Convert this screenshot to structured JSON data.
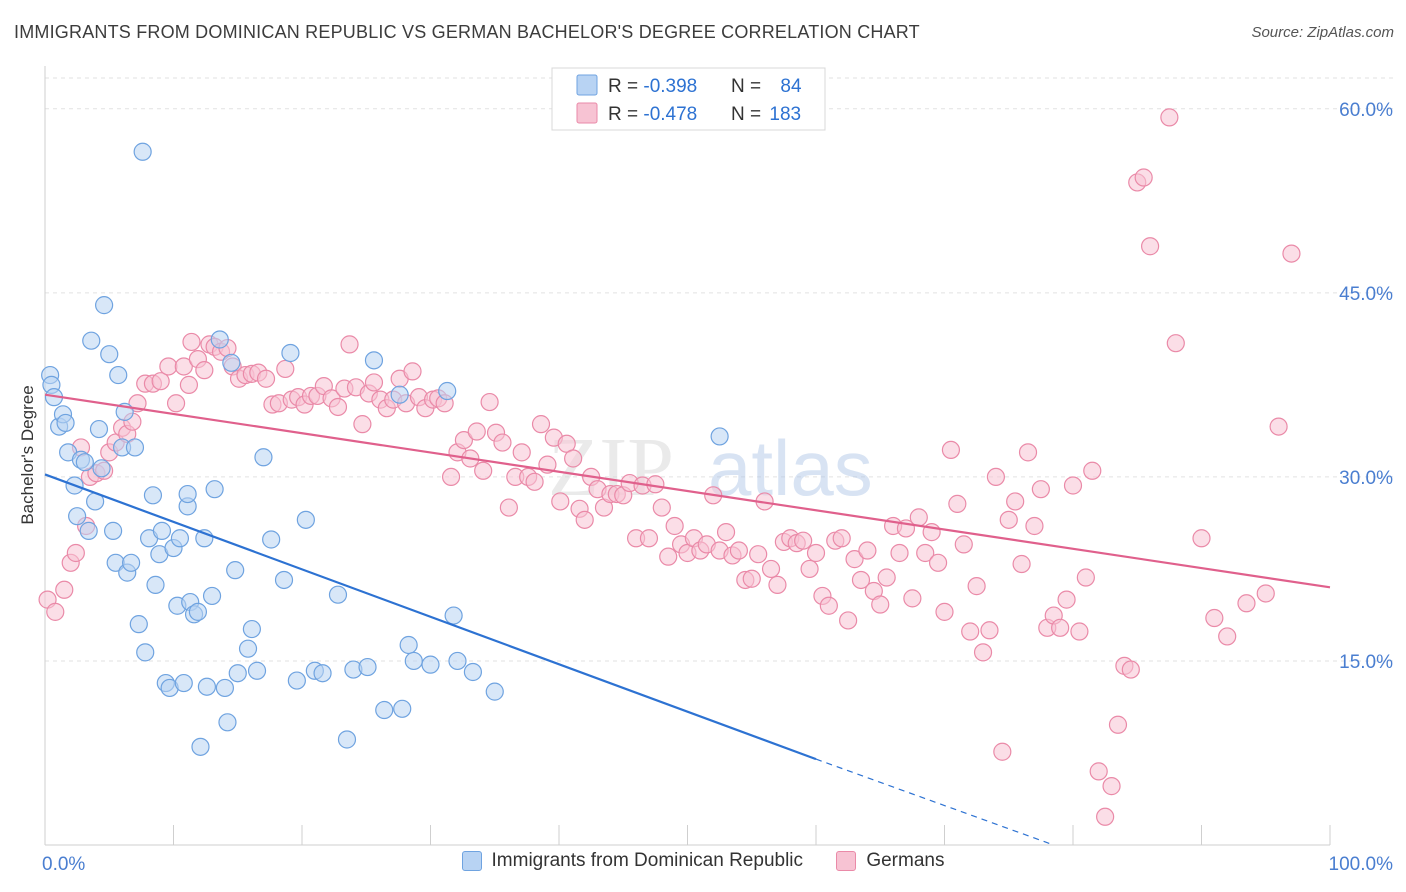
{
  "title": "IMMIGRANTS FROM DOMINICAN REPUBLIC VS GERMAN BACHELOR'S DEGREE CORRELATION CHART",
  "source": "Source: ZipAtlas.com",
  "watermark": {
    "zip": "ZIP",
    "atlas": "atlas"
  },
  "chart_data": {
    "type": "scatter",
    "ylabel": "Bachelor's Degree",
    "xlim": [
      0,
      100
    ],
    "ylim": [
      0,
      63
    ],
    "x_tick_labels": [
      {
        "value": 0,
        "label": "0.0%"
      },
      {
        "value": 100,
        "label": "100.0%"
      }
    ],
    "y_tick_labels": [
      {
        "value": 15,
        "label": "15.0%"
      },
      {
        "value": 30,
        "label": "30.0%"
      },
      {
        "value": 45,
        "label": "45.0%"
      },
      {
        "value": 60,
        "label": "60.0%"
      }
    ],
    "grid": true,
    "legend_position": "top-center",
    "stats": [
      {
        "r_label": "R = ",
        "r_value": "-0.398",
        "n_label": "N = ",
        "n_value": "84"
      },
      {
        "r_label": "R = ",
        "r_value": "-0.478",
        "n_label": "N = ",
        "n_value": "183"
      }
    ],
    "series": [
      {
        "name": "Immigrants from Dominican Republic",
        "color": "#6fa3e0",
        "fill": "#b8d3f3",
        "line_color": "#2d72d2",
        "trend": {
          "x0": 0,
          "y0": 30.2,
          "x1": 60,
          "y1": 7.0,
          "dash_to_x": 78.5,
          "dash_to_y": 0.0
        },
        "points": [
          [
            0.4,
            38.3
          ],
          [
            0.5,
            37.5
          ],
          [
            0.7,
            36.5
          ],
          [
            1.1,
            34.1
          ],
          [
            1.4,
            35.1
          ],
          [
            1.6,
            34.4
          ],
          [
            1.8,
            32.0
          ],
          [
            2.3,
            29.3
          ],
          [
            2.5,
            26.8
          ],
          [
            2.8,
            31.4
          ],
          [
            3.1,
            31.2
          ],
          [
            3.4,
            25.6
          ],
          [
            3.6,
            41.1
          ],
          [
            3.9,
            28.0
          ],
          [
            4.2,
            33.9
          ],
          [
            4.4,
            30.7
          ],
          [
            4.6,
            44.0
          ],
          [
            5.0,
            40.0
          ],
          [
            5.3,
            25.6
          ],
          [
            5.5,
            23.0
          ],
          [
            5.7,
            38.3
          ],
          [
            6.0,
            32.4
          ],
          [
            6.2,
            35.3
          ],
          [
            6.4,
            22.2
          ],
          [
            6.7,
            23.0
          ],
          [
            7.0,
            32.4
          ],
          [
            7.3,
            18.0
          ],
          [
            7.6,
            56.5
          ],
          [
            7.8,
            15.7
          ],
          [
            8.1,
            25.0
          ],
          [
            8.4,
            28.5
          ],
          [
            8.6,
            21.2
          ],
          [
            8.9,
            23.7
          ],
          [
            9.1,
            25.6
          ],
          [
            9.4,
            13.2
          ],
          [
            9.7,
            12.8
          ],
          [
            10.0,
            24.2
          ],
          [
            10.3,
            19.5
          ],
          [
            10.5,
            25.0
          ],
          [
            10.8,
            13.2
          ],
          [
            11.1,
            27.6
          ],
          [
            11.3,
            19.8
          ],
          [
            11.6,
            18.8
          ],
          [
            11.9,
            19.0
          ],
          [
            12.1,
            8.0
          ],
          [
            12.4,
            25.0
          ],
          [
            12.6,
            12.9
          ],
          [
            13.0,
            20.3
          ],
          [
            13.2,
            29.0
          ],
          [
            13.6,
            41.2
          ],
          [
            14.0,
            12.8
          ],
          [
            14.2,
            10.0
          ],
          [
            14.5,
            39.3
          ],
          [
            14.8,
            22.4
          ],
          [
            15.0,
            14.0
          ],
          [
            15.8,
            16.0
          ],
          [
            16.1,
            17.6
          ],
          [
            16.5,
            14.2
          ],
          [
            17.0,
            31.6
          ],
          [
            17.6,
            24.9
          ],
          [
            18.6,
            21.6
          ],
          [
            19.1,
            40.1
          ],
          [
            19.6,
            13.4
          ],
          [
            20.3,
            26.5
          ],
          [
            21.0,
            14.2
          ],
          [
            21.6,
            14.0
          ],
          [
            22.8,
            20.4
          ],
          [
            23.5,
            8.6
          ],
          [
            24.0,
            14.3
          ],
          [
            25.1,
            14.5
          ],
          [
            25.6,
            39.5
          ],
          [
            26.4,
            11.0
          ],
          [
            27.6,
            36.7
          ],
          [
            27.8,
            11.1
          ],
          [
            28.3,
            16.3
          ],
          [
            28.7,
            15.0
          ],
          [
            30.0,
            14.7
          ],
          [
            31.3,
            37.0
          ],
          [
            31.8,
            18.7
          ],
          [
            32.1,
            15.0
          ],
          [
            33.3,
            14.1
          ],
          [
            35.0,
            12.5
          ],
          [
            52.5,
            33.3
          ],
          [
            11.1,
            28.6
          ]
        ]
      },
      {
        "name": "Germans",
        "color": "#ea8aa8",
        "fill": "#f7c3d3",
        "line_color": "#e0608c",
        "trend": {
          "x0": 0,
          "y0": 36.7,
          "x1": 100,
          "y1": 21.0
        },
        "points": [
          [
            0.2,
            20.0
          ],
          [
            0.8,
            19.0
          ],
          [
            1.5,
            20.8
          ],
          [
            2.0,
            23.0
          ],
          [
            2.4,
            23.8
          ],
          [
            2.8,
            32.4
          ],
          [
            3.2,
            26.0
          ],
          [
            3.5,
            30.0
          ],
          [
            4.0,
            30.3
          ],
          [
            4.6,
            30.5
          ],
          [
            5.0,
            32.0
          ],
          [
            5.5,
            32.8
          ],
          [
            6.0,
            34.0
          ],
          [
            6.4,
            33.5
          ],
          [
            6.8,
            34.5
          ],
          [
            7.2,
            36.0
          ],
          [
            7.8,
            37.6
          ],
          [
            8.4,
            37.6
          ],
          [
            9.0,
            37.8
          ],
          [
            9.6,
            39.0
          ],
          [
            10.2,
            36.0
          ],
          [
            10.8,
            39.0
          ],
          [
            11.2,
            37.5
          ],
          [
            11.4,
            41.0
          ],
          [
            11.9,
            39.6
          ],
          [
            12.4,
            38.7
          ],
          [
            12.8,
            40.8
          ],
          [
            13.2,
            40.6
          ],
          [
            13.7,
            40.2
          ],
          [
            14.2,
            40.5
          ],
          [
            14.6,
            39.0
          ],
          [
            15.1,
            38.0
          ],
          [
            15.6,
            38.3
          ],
          [
            16.1,
            38.4
          ],
          [
            16.6,
            38.5
          ],
          [
            17.2,
            38.0
          ],
          [
            17.7,
            35.9
          ],
          [
            18.2,
            36.0
          ],
          [
            18.7,
            38.8
          ],
          [
            19.2,
            36.3
          ],
          [
            19.7,
            36.5
          ],
          [
            20.2,
            35.9
          ],
          [
            20.7,
            36.6
          ],
          [
            21.2,
            36.6
          ],
          [
            21.7,
            37.4
          ],
          [
            22.3,
            36.4
          ],
          [
            22.8,
            35.7
          ],
          [
            23.3,
            37.2
          ],
          [
            23.7,
            40.8
          ],
          [
            24.2,
            37.3
          ],
          [
            24.7,
            34.3
          ],
          [
            25.2,
            36.8
          ],
          [
            25.6,
            37.7
          ],
          [
            26.1,
            36.3
          ],
          [
            26.6,
            35.6
          ],
          [
            27.1,
            36.3
          ],
          [
            27.6,
            38.0
          ],
          [
            28.1,
            36.0
          ],
          [
            28.6,
            38.6
          ],
          [
            29.1,
            36.5
          ],
          [
            29.6,
            35.6
          ],
          [
            30.2,
            36.3
          ],
          [
            30.6,
            36.4
          ],
          [
            31.1,
            36.0
          ],
          [
            31.6,
            30.0
          ],
          [
            32.1,
            32.0
          ],
          [
            32.6,
            33.0
          ],
          [
            33.1,
            31.5
          ],
          [
            33.6,
            33.7
          ],
          [
            34.1,
            30.5
          ],
          [
            34.6,
            36.1
          ],
          [
            35.1,
            33.6
          ],
          [
            35.6,
            32.8
          ],
          [
            36.1,
            27.5
          ],
          [
            36.6,
            30.0
          ],
          [
            37.1,
            32.0
          ],
          [
            37.6,
            30.0
          ],
          [
            38.1,
            29.6
          ],
          [
            38.6,
            34.3
          ],
          [
            39.1,
            31.0
          ],
          [
            39.6,
            33.2
          ],
          [
            40.1,
            28.0
          ],
          [
            40.6,
            32.7
          ],
          [
            41.1,
            31.5
          ],
          [
            41.6,
            27.4
          ],
          [
            42.0,
            26.5
          ],
          [
            42.5,
            30.0
          ],
          [
            43.0,
            29.0
          ],
          [
            43.5,
            27.5
          ],
          [
            44.0,
            28.6
          ],
          [
            44.5,
            28.6
          ],
          [
            45.0,
            28.5
          ],
          [
            45.5,
            29.5
          ],
          [
            46.0,
            25.0
          ],
          [
            46.5,
            29.3
          ],
          [
            47.0,
            25.0
          ],
          [
            47.5,
            29.4
          ],
          [
            48.0,
            27.5
          ],
          [
            48.5,
            23.5
          ],
          [
            49.0,
            26.0
          ],
          [
            49.5,
            24.5
          ],
          [
            50.0,
            23.8
          ],
          [
            50.5,
            25.0
          ],
          [
            51.0,
            24.0
          ],
          [
            51.5,
            24.5
          ],
          [
            52.0,
            28.5
          ],
          [
            52.5,
            24.0
          ],
          [
            53.0,
            25.5
          ],
          [
            53.5,
            23.6
          ],
          [
            54.0,
            24.0
          ],
          [
            54.5,
            21.6
          ],
          [
            55.0,
            21.7
          ],
          [
            55.5,
            23.7
          ],
          [
            56.0,
            28.0
          ],
          [
            56.5,
            22.5
          ],
          [
            57.0,
            21.2
          ],
          [
            57.5,
            24.7
          ],
          [
            58.0,
            25.0
          ],
          [
            58.5,
            24.6
          ],
          [
            59.0,
            24.8
          ],
          [
            59.5,
            22.5
          ],
          [
            60.0,
            23.8
          ],
          [
            60.5,
            20.3
          ],
          [
            61.0,
            19.5
          ],
          [
            61.5,
            24.8
          ],
          [
            62.0,
            25.0
          ],
          [
            62.5,
            18.3
          ],
          [
            63.0,
            23.3
          ],
          [
            63.5,
            21.6
          ],
          [
            64.0,
            24.0
          ],
          [
            64.5,
            20.7
          ],
          [
            65.0,
            19.6
          ],
          [
            65.5,
            21.8
          ],
          [
            66.0,
            26.0
          ],
          [
            66.5,
            23.8
          ],
          [
            67.0,
            25.8
          ],
          [
            67.5,
            20.1
          ],
          [
            68.0,
            26.7
          ],
          [
            68.5,
            23.8
          ],
          [
            69.0,
            25.5
          ],
          [
            69.5,
            23.0
          ],
          [
            70.0,
            19.0
          ],
          [
            70.5,
            32.2
          ],
          [
            71.0,
            27.8
          ],
          [
            71.5,
            24.5
          ],
          [
            72.0,
            17.4
          ],
          [
            72.5,
            21.1
          ],
          [
            73.0,
            15.7
          ],
          [
            73.5,
            17.5
          ],
          [
            74.0,
            30.0
          ],
          [
            74.5,
            7.6
          ],
          [
            75.0,
            26.5
          ],
          [
            75.5,
            28.0
          ],
          [
            76.0,
            22.9
          ],
          [
            76.5,
            32.0
          ],
          [
            77.0,
            26.0
          ],
          [
            77.5,
            29.0
          ],
          [
            78.0,
            17.7
          ],
          [
            78.5,
            18.7
          ],
          [
            79.0,
            17.7
          ],
          [
            79.5,
            20.0
          ],
          [
            80.0,
            29.3
          ],
          [
            80.5,
            17.4
          ],
          [
            81.0,
            21.8
          ],
          [
            81.5,
            30.5
          ],
          [
            82.0,
            6.0
          ],
          [
            82.5,
            2.3
          ],
          [
            83.0,
            4.8
          ],
          [
            83.5,
            9.8
          ],
          [
            84.0,
            14.6
          ],
          [
            84.5,
            14.3
          ],
          [
            85.0,
            54.0
          ],
          [
            85.5,
            54.4
          ],
          [
            86.0,
            48.8
          ],
          [
            87.5,
            59.3
          ],
          [
            88.0,
            40.9
          ],
          [
            90.0,
            25.0
          ],
          [
            91.0,
            18.5
          ],
          [
            92.0,
            17.0
          ],
          [
            93.5,
            19.7
          ],
          [
            95.0,
            20.5
          ],
          [
            96.0,
            34.1
          ],
          [
            97.0,
            48.2
          ]
        ]
      }
    ]
  }
}
